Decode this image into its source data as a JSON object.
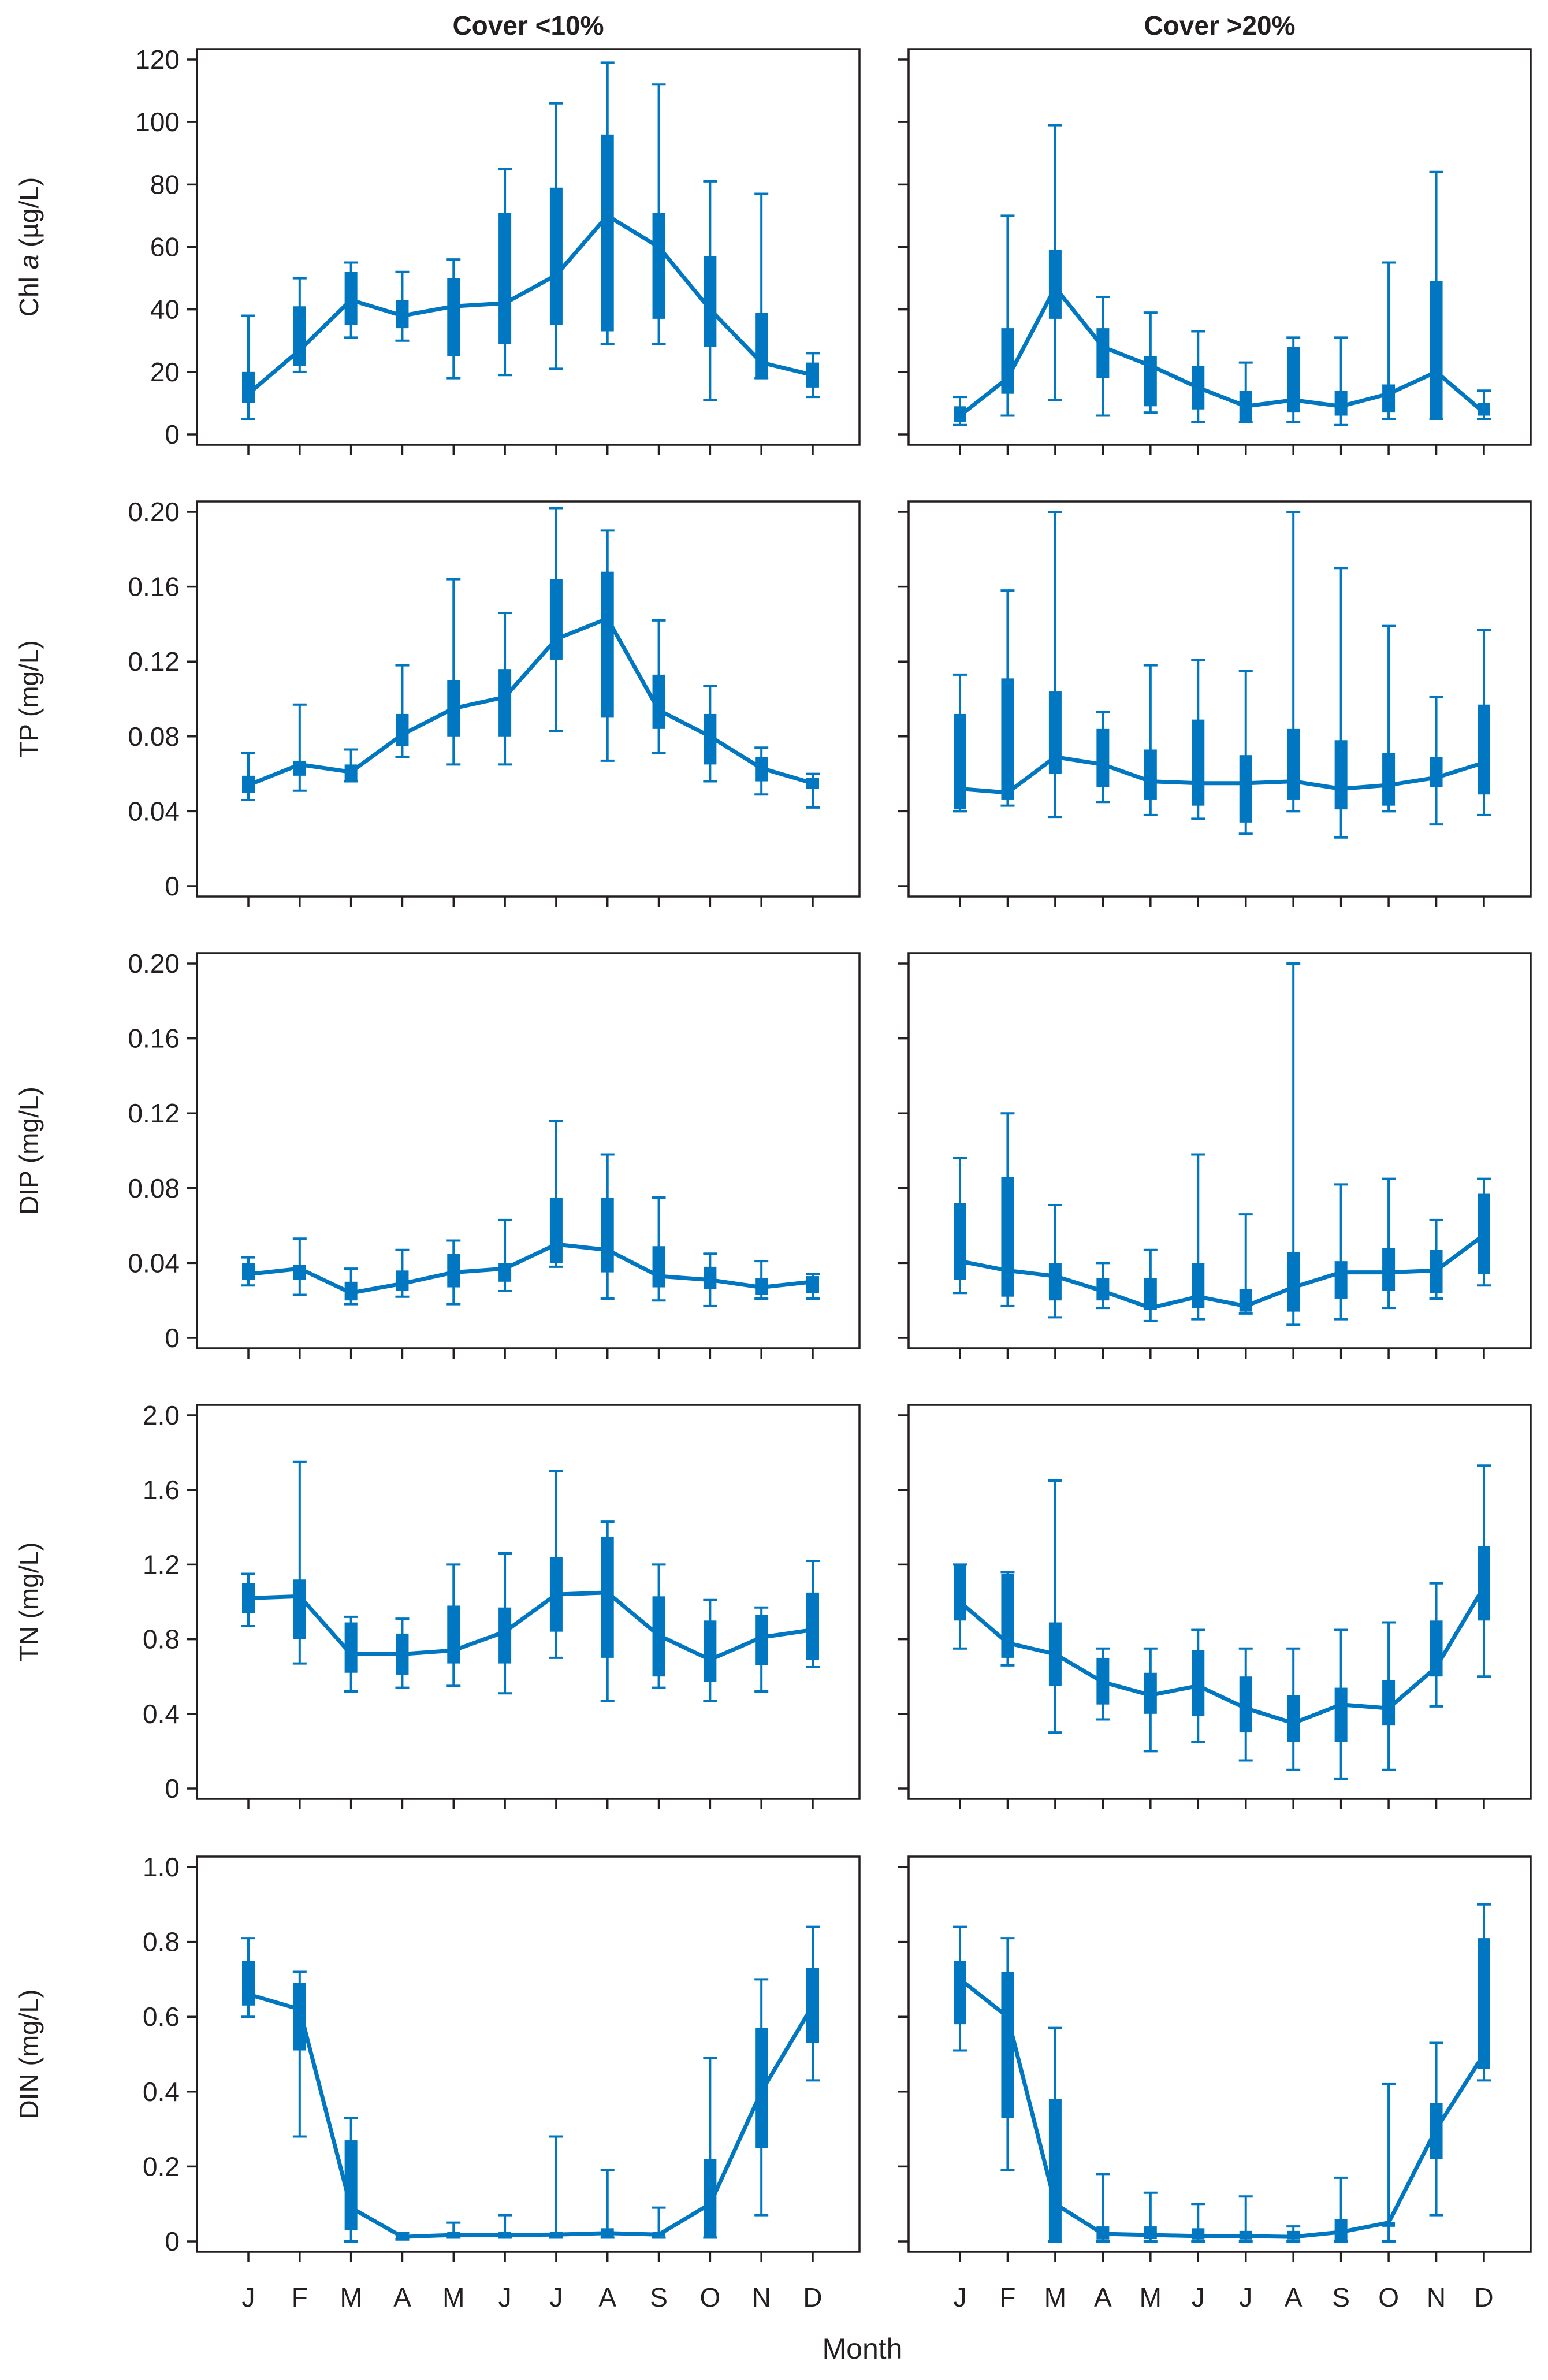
{
  "figure": {
    "x_axis_title": "Month",
    "colors": {
      "series": "#0077c0",
      "axis": "#231f20",
      "background": "#ffffff"
    }
  },
  "chart_data": {
    "type": "boxplot",
    "months": [
      "J",
      "F",
      "M",
      "A",
      "M",
      "J",
      "J",
      "A",
      "S",
      "O",
      "N",
      "D"
    ],
    "columns": [
      "Cover <10%",
      "Cover >20%"
    ],
    "xlabel": "Month",
    "variables": [
      {
        "id": "chla",
        "ylabel_prefix": "Chl ",
        "ylabel_italic": "a",
        "ylabel_suffix": " (µg/L)",
        "ylim": [
          0,
          120
        ],
        "ticks": [
          "0",
          "20",
          "40",
          "60",
          "80",
          "100",
          "120"
        ],
        "tick_values": [
          0,
          20,
          40,
          60,
          80,
          100,
          120
        ],
        "panels": [
          {
            "column": "Cover <10%",
            "whisker_low": [
              5,
              20,
              31,
              30,
              18,
              19,
              21,
              29,
              29,
              11,
              18,
              12
            ],
            "q1": [
              10,
              22,
              35,
              34,
              25,
              29,
              35,
              33,
              37,
              28,
              18,
              15
            ],
            "median": [
              13,
              27,
              43,
              38,
              41,
              42,
              51,
              70,
              60,
              40,
              23,
              19
            ],
            "q3": [
              20,
              41,
              52,
              43,
              50,
              71,
              79,
              96,
              71,
              57,
              39,
              23
            ],
            "whisker_high": [
              38,
              50,
              55,
              52,
              56,
              85,
              106,
              119,
              112,
              81,
              77,
              26
            ]
          },
          {
            "column": "Cover >20%",
            "whisker_low": [
              3,
              6,
              11,
              6,
              7,
              4,
              4,
              4,
              3,
              5,
              5,
              5
            ],
            "q1": [
              4,
              13,
              37,
              18,
              9,
              8,
              4,
              7,
              6,
              7,
              5,
              6
            ],
            "median": [
              6,
              18,
              47,
              28,
              22,
              15,
              9,
              11,
              9,
              13,
              20,
              7
            ],
            "q3": [
              9,
              34,
              59,
              34,
              25,
              22,
              14,
              28,
              14,
              16,
              49,
              10
            ],
            "whisker_high": [
              12,
              70,
              99,
              44,
              39,
              33,
              23,
              31,
              31,
              55,
              84,
              14
            ]
          }
        ]
      },
      {
        "id": "tp",
        "ylabel_prefix": "TP (mg/L)",
        "ylabel_italic": "",
        "ylabel_suffix": "",
        "ylim": [
          0,
          0.2
        ],
        "ticks": [
          "0",
          "0.04",
          "0.08",
          "0.12",
          "0.16",
          "0.20"
        ],
        "tick_values": [
          0,
          0.04,
          0.08,
          0.12,
          0.16,
          0.2
        ],
        "panels": [
          {
            "column": "Cover <10%",
            "whisker_low": [
              0.046,
              0.051,
              0.056,
              0.069,
              0.065,
              0.065,
              0.083,
              0.067,
              0.071,
              0.056,
              0.049,
              0.042
            ],
            "q1": [
              0.05,
              0.059,
              0.056,
              0.075,
              0.08,
              0.08,
              0.121,
              0.09,
              0.084,
              0.065,
              0.056,
              0.052
            ],
            "median": [
              0.054,
              0.065,
              0.061,
              0.081,
              0.095,
              0.101,
              0.132,
              0.143,
              0.094,
              0.08,
              0.063,
              0.055
            ],
            "q3": [
              0.059,
              0.067,
              0.065,
              0.092,
              0.11,
              0.116,
              0.164,
              0.168,
              0.113,
              0.092,
              0.069,
              0.058
            ],
            "whisker_high": [
              0.071,
              0.097,
              0.073,
              0.118,
              0.164,
              0.146,
              0.202,
              0.19,
              0.142,
              0.107,
              0.074,
              0.06
            ]
          },
          {
            "column": "Cover >20%",
            "whisker_low": [
              0.04,
              0.043,
              0.037,
              0.045,
              0.038,
              0.036,
              0.028,
              0.04,
              0.026,
              0.04,
              0.033,
              0.038
            ],
            "q1": [
              0.041,
              0.046,
              0.06,
              0.053,
              0.046,
              0.043,
              0.034,
              0.046,
              0.041,
              0.043,
              0.053,
              0.049
            ],
            "median": [
              0.052,
              0.05,
              0.069,
              0.065,
              0.056,
              0.055,
              0.055,
              0.056,
              0.052,
              0.054,
              0.058,
              0.066
            ],
            "q3": [
              0.092,
              0.111,
              0.104,
              0.084,
              0.073,
              0.089,
              0.07,
              0.084,
              0.078,
              0.071,
              0.069,
              0.097
            ],
            "whisker_high": [
              0.113,
              0.158,
              0.2,
              0.093,
              0.118,
              0.121,
              0.115,
              0.2,
              0.17,
              0.139,
              0.101,
              0.137
            ]
          }
        ]
      },
      {
        "id": "dip",
        "ylabel_prefix": "DIP (mg/L)",
        "ylabel_italic": "",
        "ylabel_suffix": "",
        "ylim": [
          0,
          0.2
        ],
        "ticks": [
          "0",
          "0.04",
          "0.08",
          "0.12",
          "0.16",
          "0.20"
        ],
        "tick_values": [
          0,
          0.04,
          0.08,
          0.12,
          0.16,
          0.2
        ],
        "panels": [
          {
            "column": "Cover <10%",
            "whisker_low": [
              0.028,
              0.023,
              0.018,
              0.022,
              0.018,
              0.025,
              0.038,
              0.021,
              0.02,
              0.017,
              0.021,
              0.021
            ],
            "q1": [
              0.031,
              0.031,
              0.02,
              0.025,
              0.027,
              0.03,
              0.04,
              0.035,
              0.027,
              0.026,
              0.023,
              0.024
            ],
            "median": [
              0.034,
              0.037,
              0.024,
              0.029,
              0.035,
              0.037,
              0.05,
              0.047,
              0.033,
              0.031,
              0.027,
              0.03
            ],
            "q3": [
              0.04,
              0.039,
              0.03,
              0.036,
              0.045,
              0.04,
              0.075,
              0.075,
              0.049,
              0.038,
              0.032,
              0.033
            ],
            "whisker_high": [
              0.043,
              0.053,
              0.037,
              0.047,
              0.052,
              0.063,
              0.116,
              0.098,
              0.075,
              0.045,
              0.041,
              0.034
            ]
          },
          {
            "column": "Cover >20%",
            "whisker_low": [
              0.024,
              0.017,
              0.011,
              0.016,
              0.009,
              0.01,
              0.013,
              0.007,
              0.01,
              0.016,
              0.021,
              0.028
            ],
            "q1": [
              0.031,
              0.022,
              0.02,
              0.02,
              0.015,
              0.016,
              0.014,
              0.014,
              0.021,
              0.025,
              0.024,
              0.034
            ],
            "median": [
              0.041,
              0.036,
              0.033,
              0.025,
              0.016,
              0.022,
              0.017,
              0.027,
              0.035,
              0.035,
              0.036,
              0.055
            ],
            "q3": [
              0.072,
              0.086,
              0.04,
              0.032,
              0.032,
              0.04,
              0.026,
              0.046,
              0.041,
              0.048,
              0.047,
              0.077
            ],
            "whisker_high": [
              0.096,
              0.12,
              0.071,
              0.04,
              0.047,
              0.098,
              0.066,
              0.2,
              0.082,
              0.085,
              0.063,
              0.085
            ]
          }
        ]
      },
      {
        "id": "tn",
        "ylabel_prefix": "TN (mg/L)",
        "ylabel_italic": "",
        "ylabel_suffix": "",
        "ylim": [
          0,
          2.0
        ],
        "ticks": [
          "0",
          "0.4",
          "0.8",
          "1.2",
          "1.6",
          "2.0"
        ],
        "tick_values": [
          0,
          0.4,
          0.8,
          1.2,
          1.6,
          2.0
        ],
        "panels": [
          {
            "column": "Cover <10%",
            "whisker_low": [
              0.87,
              0.67,
              0.52,
              0.54,
              0.55,
              0.51,
              0.7,
              0.47,
              0.54,
              0.47,
              0.52,
              0.65
            ],
            "q1": [
              0.94,
              0.8,
              0.62,
              0.61,
              0.67,
              0.67,
              0.84,
              0.7,
              0.6,
              0.57,
              0.66,
              0.69
            ],
            "median": [
              1.02,
              1.03,
              0.72,
              0.72,
              0.74,
              0.84,
              1.04,
              1.05,
              0.82,
              0.69,
              0.81,
              0.85
            ],
            "q3": [
              1.1,
              1.12,
              0.89,
              0.83,
              0.98,
              0.97,
              1.24,
              1.35,
              1.03,
              0.9,
              0.93,
              1.05
            ],
            "whisker_high": [
              1.15,
              1.75,
              0.92,
              0.91,
              1.2,
              1.26,
              1.7,
              1.43,
              1.2,
              1.01,
              0.97,
              1.22
            ]
          },
          {
            "column": "Cover >20%",
            "whisker_low": [
              0.75,
              0.66,
              0.3,
              0.37,
              0.2,
              0.25,
              0.15,
              0.1,
              0.05,
              0.1,
              0.44,
              0.6
            ],
            "q1": [
              0.9,
              0.7,
              0.55,
              0.45,
              0.4,
              0.39,
              0.3,
              0.25,
              0.25,
              0.34,
              0.6,
              0.9
            ],
            "median": [
              1.0,
              0.78,
              0.72,
              0.57,
              0.5,
              0.55,
              0.43,
              0.35,
              0.45,
              0.43,
              0.65,
              1.08
            ],
            "q3": [
              1.2,
              1.15,
              0.89,
              0.7,
              0.62,
              0.74,
              0.6,
              0.5,
              0.54,
              0.58,
              0.9,
              1.3
            ],
            "whisker_high": [
              1.2,
              1.16,
              1.65,
              0.75,
              0.75,
              0.85,
              0.75,
              0.75,
              0.85,
              0.89,
              1.1,
              1.73
            ]
          }
        ]
      },
      {
        "id": "din",
        "ylabel_prefix": "DIN (mg/L)",
        "ylabel_italic": "",
        "ylabel_suffix": "",
        "ylim": [
          0,
          1.0
        ],
        "ticks": [
          "0",
          "0.2",
          "0.4",
          "0.6",
          "0.8",
          "1.0"
        ],
        "tick_values": [
          0,
          0.2,
          0.4,
          0.6,
          0.8,
          1.0
        ],
        "panels": [
          {
            "column": "Cover <10%",
            "whisker_low": [
              0.6,
              0.28,
              0.0,
              0.005,
              0.01,
              0.01,
              0.01,
              0.01,
              0.01,
              0.01,
              0.07,
              0.43
            ],
            "q1": [
              0.63,
              0.51,
              0.03,
              0.008,
              0.012,
              0.013,
              0.014,
              0.012,
              0.015,
              0.01,
              0.25,
              0.53
            ],
            "median": [
              0.66,
              0.62,
              0.09,
              0.012,
              0.017,
              0.017,
              0.018,
              0.022,
              0.018,
              0.1,
              0.4,
              0.63
            ],
            "q3": [
              0.75,
              0.69,
              0.27,
              0.017,
              0.025,
              0.024,
              0.025,
              0.035,
              0.024,
              0.22,
              0.57,
              0.73
            ],
            "whisker_high": [
              0.81,
              0.72,
              0.33,
              0.022,
              0.05,
              0.07,
              0.28,
              0.19,
              0.09,
              0.49,
              0.7,
              0.84
            ]
          },
          {
            "column": "Cover >20%",
            "whisker_low": [
              0.51,
              0.19,
              0.0,
              0.0,
              0.0,
              0.0,
              0.0,
              0.0,
              0.0,
              0.0,
              0.07,
              0.43
            ],
            "q1": [
              0.58,
              0.33,
              0.0,
              0.005,
              0.006,
              0.005,
              0.005,
              0.005,
              0.003,
              0.04,
              0.22,
              0.46
            ],
            "median": [
              0.7,
              0.6,
              0.1,
              0.02,
              0.017,
              0.014,
              0.014,
              0.012,
              0.025,
              0.05,
              0.3,
              0.5
            ],
            "q3": [
              0.75,
              0.72,
              0.38,
              0.04,
              0.04,
              0.035,
              0.028,
              0.028,
              0.06,
              0.05,
              0.37,
              0.81
            ],
            "whisker_high": [
              0.84,
              0.81,
              0.57,
              0.18,
              0.13,
              0.1,
              0.12,
              0.04,
              0.17,
              0.42,
              0.53,
              0.9
            ]
          }
        ]
      }
    ]
  }
}
